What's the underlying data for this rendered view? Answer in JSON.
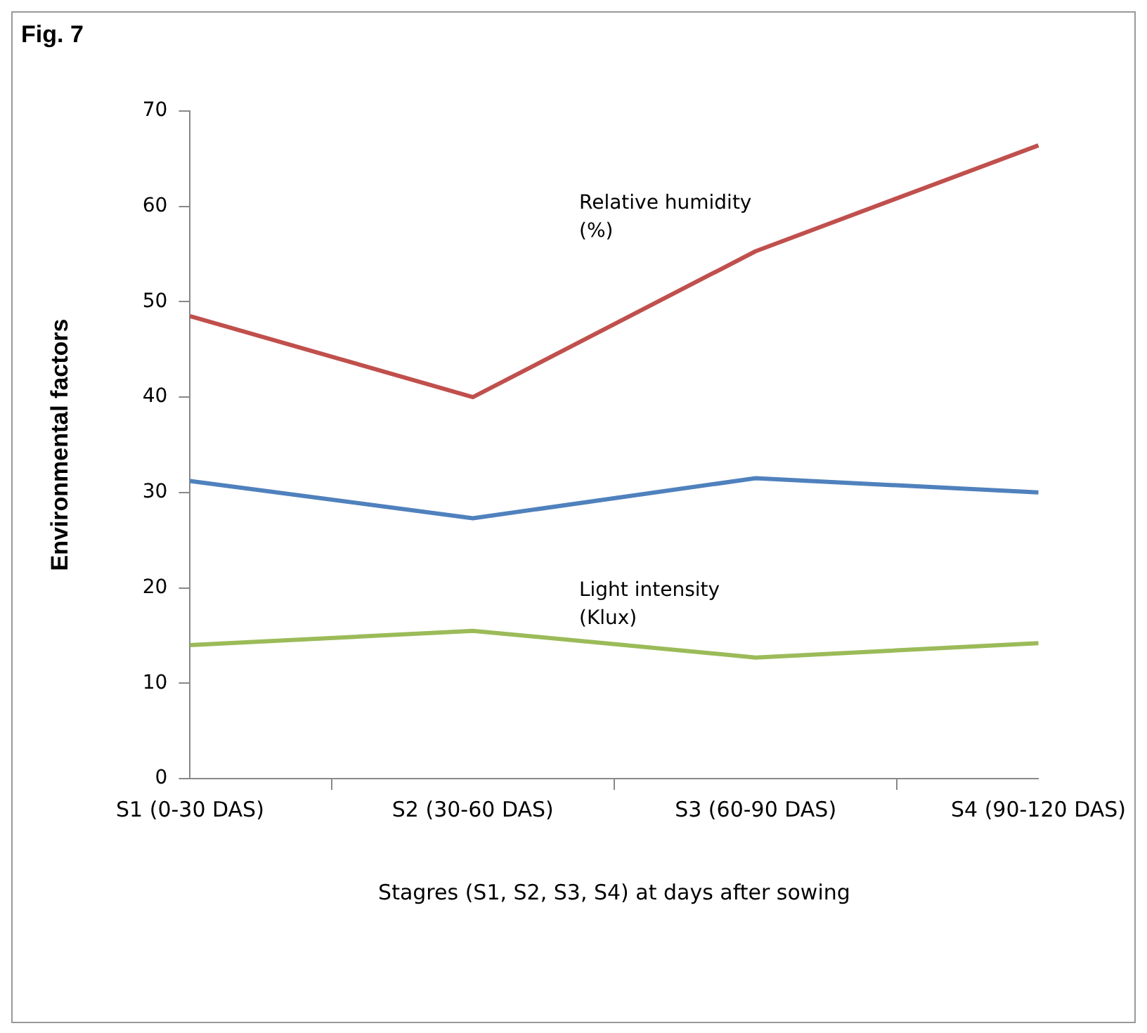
{
  "chart_data": {
    "type": "line",
    "title": "Fig. 7",
    "xlabel": "Stagres (S1, S2, S3, S4) at days after sowing",
    "ylabel": "Environmental factors",
    "categories": [
      "S1 (0-30 DAS)",
      "S2 (30-60 DAS)",
      "S3 (60-90 DAS)",
      "S4 (90-120 DAS)"
    ],
    "series": [
      {
        "name": "Relative humidity (%)",
        "color": "#c0504d",
        "values": [
          48.5,
          40.0,
          55.3,
          66.4
        ]
      },
      {
        "color": "#4f81bd",
        "values": [
          31.2,
          27.3,
          31.5,
          30.0
        ]
      },
      {
        "name": "Light intensity (Klux)",
        "color": "#9bbb59",
        "values": [
          14.0,
          15.5,
          12.7,
          14.2
        ]
      }
    ],
    "ylim": [
      0,
      70
    ],
    "yticks": [
      0,
      10,
      20,
      30,
      40,
      50,
      60,
      70
    ],
    "grid": false,
    "legend": false,
    "marker": "none",
    "line_style": "solid"
  }
}
